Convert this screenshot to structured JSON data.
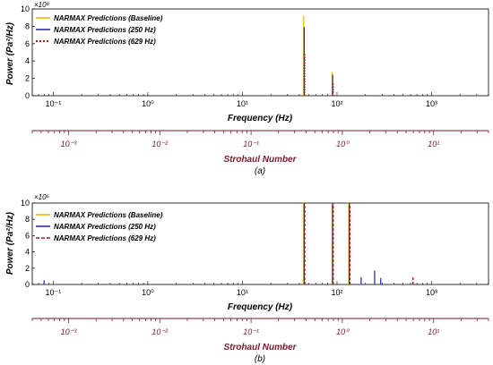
{
  "chart_data": [
    {
      "type": "line",
      "panel_caption": "(a)",
      "x_scale": "log",
      "xlim": [
        0.06,
        4000
      ],
      "ylim": [
        0,
        10
      ],
      "y_multiplier": "×10⁸",
      "xlabel": "Frequency (Hz)",
      "ylabel": "Power (Pa²/Hz)",
      "x_tick_labels": [
        "10⁻¹",
        "10⁰",
        "10¹",
        "10²",
        "10³"
      ],
      "y_tick_labels": [
        "0",
        "2",
        "4",
        "6",
        "8",
        "10"
      ],
      "secondary_xlabel": "Strohaul Number",
      "secondary_xlim": [
        0.0004,
        40
      ],
      "secondary_tick_labels": [
        "10⁻³",
        "10⁻²",
        "10⁻¹",
        "10⁰",
        "10¹"
      ],
      "legend_position": "top-left",
      "series": [
        {
          "name": "NARMAX Predictions (Baseline)",
          "color": "#e8b400",
          "style": "solid",
          "peaks": [
            {
              "x": 45,
              "y": 9.2
            },
            {
              "x": 90,
              "y": 2.7
            }
          ]
        },
        {
          "name": "NARMAX Predictions (250 Hz)",
          "color": "#1f1fbf",
          "style": "solid",
          "peaks": [
            {
              "x": 45,
              "y": 7.9
            },
            {
              "x": 90,
              "y": 2.4
            }
          ]
        },
        {
          "name": "NARMAX Predictions (629 Hz)",
          "color": "#b01818",
          "style": "dotted",
          "peaks": [
            {
              "x": 45,
              "y": 4.8
            },
            {
              "x": 90,
              "y": 1.5
            }
          ]
        }
      ]
    },
    {
      "type": "line",
      "panel_caption": "(b)",
      "x_scale": "log",
      "xlim": [
        0.06,
        4000
      ],
      "ylim": [
        0,
        10
      ],
      "y_multiplier": "×10⁶",
      "xlabel": "Frequency (Hz)",
      "ylabel": "Power (Pa²/Hz)",
      "x_tick_labels": [
        "10⁻¹",
        "10⁰",
        "10¹",
        "10²",
        "10³"
      ],
      "y_tick_labels": [
        "0",
        "2",
        "4",
        "6",
        "8",
        "10"
      ],
      "secondary_xlabel": "Strohaul Number",
      "secondary_xlim": [
        0.0004,
        40
      ],
      "secondary_tick_labels": [
        "10⁻³",
        "10⁻²",
        "10⁻¹",
        "10⁰",
        "10¹"
      ],
      "legend_position": "top-left",
      "series": [
        {
          "name": "NARMAX Predictions (Baseline)",
          "color": "#e8b400",
          "style": "solid",
          "peaks": [
            {
              "x": 45,
              "y": 10
            },
            {
              "x": 90,
              "y": 10
            },
            {
              "x": 135,
              "y": 10
            }
          ]
        },
        {
          "name": "NARMAX Predictions (250 Hz)",
          "color": "#1f1fbf",
          "style": "solid",
          "peaks": [
            {
              "x": 45,
              "y": 10
            },
            {
              "x": 90,
              "y": 10
            },
            {
              "x": 135,
              "y": 10
            },
            {
              "x": 250,
              "y": 1.7
            },
            {
              "x": 290,
              "y": 0.8
            },
            {
              "x": 180,
              "y": 0.9
            },
            {
              "x": 0.08,
              "y": 0.5
            }
          ]
        },
        {
          "name": "NARMAX Predictions (629 Hz)",
          "color": "#b01818",
          "style": "dashed",
          "peaks": [
            {
              "x": 45,
              "y": 10
            },
            {
              "x": 90,
              "y": 10
            },
            {
              "x": 135,
              "y": 10
            },
            {
              "x": 629,
              "y": 1.1
            }
          ]
        }
      ]
    }
  ]
}
